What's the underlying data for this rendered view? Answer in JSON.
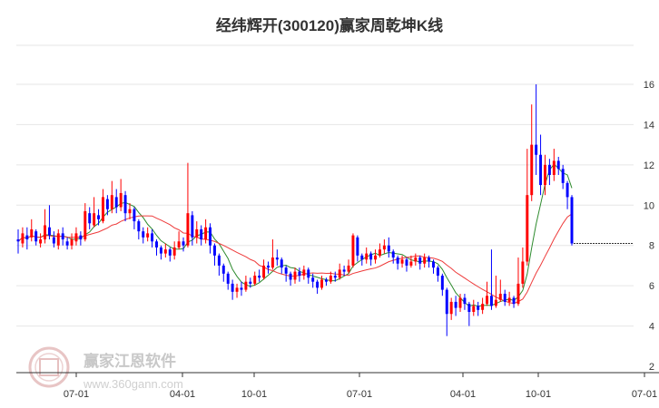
{
  "chart_data": {
    "type": "candlestick",
    "title": "经纬辉开(300120)赢家周乾坤K线",
    "y_ticks": [
      2,
      4,
      6,
      8,
      10,
      12,
      14,
      16
    ],
    "x_ticks": [
      "07-01",
      "04-01",
      "10-01",
      "07-01",
      "04-01",
      "10-01",
      "07-01"
    ],
    "ylim": [
      2,
      17.5
    ],
    "grid": "horizontal",
    "last_close": 8.1,
    "candles": [
      [
        8.3,
        8.2,
        8.8,
        7.6
      ],
      [
        8.1,
        8.6,
        8.9,
        7.9
      ],
      [
        8.5,
        8.3,
        8.9,
        7.8
      ],
      [
        8.4,
        8.8,
        9.3,
        8.2
      ],
      [
        8.7,
        8.2,
        8.8,
        8.0
      ],
      [
        8.1,
        8.3,
        8.6,
        7.9
      ],
      [
        8.3,
        9.0,
        9.8,
        8.1
      ],
      [
        8.9,
        8.5,
        10.0,
        8.3
      ],
      [
        8.4,
        8.1,
        8.7,
        7.9
      ],
      [
        8.0,
        8.6,
        8.8,
        7.8
      ],
      [
        8.6,
        8.3,
        8.9,
        8.0
      ],
      [
        8.2,
        8.0,
        8.4,
        7.8
      ],
      [
        8.0,
        8.3,
        8.6,
        7.8
      ],
      [
        8.2,
        8.6,
        8.9,
        8.0
      ],
      [
        8.5,
        8.3,
        8.7,
        8.0
      ],
      [
        8.3,
        9.7,
        10.1,
        8.2
      ],
      [
        9.6,
        9.1,
        9.9,
        8.8
      ],
      [
        9.0,
        9.6,
        10.4,
        8.9
      ],
      [
        9.5,
        9.3,
        9.8,
        9.0
      ],
      [
        9.2,
        10.4,
        10.8,
        9.1
      ],
      [
        10.3,
        9.8,
        10.5,
        9.5
      ],
      [
        9.8,
        10.5,
        11.2,
        9.6
      ],
      [
        10.4,
        9.9,
        10.8,
        9.6
      ],
      [
        9.9,
        10.6,
        11.3,
        9.7
      ],
      [
        10.5,
        9.6,
        10.7,
        9.2
      ],
      [
        9.6,
        9.8,
        10.1,
        9.3
      ],
      [
        9.8,
        9.2,
        9.9,
        8.8
      ],
      [
        9.2,
        8.7,
        9.3,
        8.3
      ],
      [
        8.7,
        8.4,
        8.9,
        8.1
      ],
      [
        8.4,
        8.6,
        8.9,
        8.2
      ],
      [
        8.6,
        8.2,
        8.8,
        7.9
      ],
      [
        8.2,
        7.9,
        8.3,
        7.5
      ],
      [
        7.9,
        7.6,
        8.0,
        7.3
      ],
      [
        7.6,
        7.8,
        8.1,
        7.4
      ],
      [
        7.8,
        7.5,
        7.9,
        7.2
      ],
      [
        7.5,
        7.9,
        8.2,
        7.3
      ],
      [
        7.9,
        8.2,
        8.7,
        7.8
      ],
      [
        8.2,
        8.0,
        8.4,
        7.7
      ],
      [
        8.0,
        9.6,
        12.1,
        7.9
      ],
      [
        9.5,
        8.4,
        9.7,
        8.0
      ],
      [
        8.4,
        8.8,
        9.2,
        8.1
      ],
      [
        8.8,
        8.3,
        9.0,
        8.0
      ],
      [
        8.3,
        8.9,
        9.3,
        8.1
      ],
      [
        8.9,
        8.0,
        9.1,
        7.6
      ],
      [
        8.0,
        7.5,
        8.1,
        7.0
      ],
      [
        7.5,
        7.0,
        7.6,
        6.5
      ],
      [
        7.0,
        6.6,
        7.1,
        6.2
      ],
      [
        6.6,
        6.1,
        6.7,
        5.8
      ],
      [
        6.1,
        5.7,
        6.3,
        5.3
      ],
      [
        5.7,
        5.9,
        6.1,
        5.4
      ],
      [
        5.9,
        5.8,
        6.2,
        5.5
      ],
      [
        5.8,
        6.2,
        6.5,
        5.7
      ],
      [
        6.2,
        6.1,
        6.4,
        5.9
      ],
      [
        6.1,
        6.5,
        6.7,
        6.0
      ],
      [
        6.5,
        6.4,
        6.8,
        6.2
      ],
      [
        6.4,
        7.0,
        7.3,
        6.3
      ],
      [
        7.0,
        6.9,
        7.2,
        6.6
      ],
      [
        6.9,
        7.4,
        8.3,
        6.8
      ],
      [
        7.4,
        7.3,
        7.8,
        7.0
      ],
      [
        7.3,
        6.9,
        7.4,
        6.6
      ],
      [
        6.9,
        6.6,
        7.0,
        6.2
      ],
      [
        6.6,
        6.3,
        6.7,
        6.0
      ],
      [
        6.3,
        6.7,
        6.9,
        6.1
      ],
      [
        6.7,
        6.5,
        6.9,
        6.2
      ],
      [
        6.5,
        6.8,
        7.0,
        6.3
      ],
      [
        6.8,
        6.4,
        6.9,
        6.1
      ],
      [
        6.4,
        6.2,
        6.6,
        5.9
      ],
      [
        6.2,
        5.9,
        6.3,
        5.6
      ],
      [
        5.9,
        6.3,
        6.5,
        5.8
      ],
      [
        6.3,
        6.2,
        6.4,
        6.0
      ],
      [
        6.2,
        6.5,
        6.7,
        6.1
      ],
      [
        6.5,
        6.4,
        6.7,
        6.2
      ],
      [
        6.4,
        6.8,
        7.1,
        6.3
      ],
      [
        6.8,
        6.7,
        7.0,
        6.5
      ],
      [
        6.7,
        7.0,
        7.3,
        6.6
      ],
      [
        7.0,
        8.5,
        8.6,
        6.9
      ],
      [
        8.4,
        7.5,
        8.5,
        7.2
      ],
      [
        7.5,
        7.3,
        7.6,
        7.0
      ],
      [
        7.3,
        7.6,
        7.9,
        7.1
      ],
      [
        7.6,
        7.3,
        7.7,
        7.0
      ],
      [
        7.3,
        7.5,
        7.8,
        7.1
      ],
      [
        7.5,
        7.8,
        8.1,
        7.4
      ],
      [
        7.8,
        8.0,
        8.3,
        7.6
      ],
      [
        8.0,
        7.7,
        8.4,
        7.4
      ],
      [
        7.7,
        7.4,
        7.8,
        7.1
      ],
      [
        7.4,
        7.1,
        7.5,
        6.8
      ],
      [
        7.1,
        7.3,
        7.5,
        6.9
      ],
      [
        7.3,
        7.0,
        7.4,
        6.7
      ],
      [
        7.0,
        7.2,
        7.5,
        6.9
      ],
      [
        7.2,
        7.4,
        7.6,
        7.0
      ],
      [
        7.4,
        7.1,
        7.5,
        6.8
      ],
      [
        7.1,
        7.4,
        7.6,
        6.9
      ],
      [
        7.4,
        7.2,
        7.5,
        6.9
      ],
      [
        7.2,
        6.9,
        7.3,
        6.6
      ],
      [
        6.9,
        6.5,
        7.0,
        6.2
      ],
      [
        6.5,
        5.8,
        6.6,
        5.5
      ],
      [
        5.8,
        4.6,
        5.9,
        3.5
      ],
      [
        4.6,
        5.2,
        5.4,
        4.3
      ],
      [
        5.2,
        4.9,
        5.5,
        4.5
      ],
      [
        4.9,
        5.4,
        5.6,
        4.7
      ],
      [
        5.4,
        5.1,
        5.6,
        4.8
      ],
      [
        5.1,
        4.7,
        5.2,
        4.0
      ],
      [
        4.7,
        5.0,
        5.3,
        4.5
      ],
      [
        5.0,
        4.8,
        5.2,
        4.5
      ],
      [
        4.8,
        5.1,
        5.4,
        4.6
      ],
      [
        5.1,
        5.5,
        6.2,
        5.0
      ],
      [
        5.5,
        5.0,
        7.8,
        4.8
      ],
      [
        5.0,
        5.3,
        6.5,
        4.9
      ],
      [
        5.3,
        5.6,
        6.3,
        5.2
      ],
      [
        5.6,
        5.2,
        5.8,
        5.0
      ],
      [
        5.2,
        5.4,
        5.7,
        5.0
      ],
      [
        5.4,
        5.1,
        5.5,
        4.9
      ],
      [
        5.1,
        6.1,
        7.4,
        5.0
      ],
      [
        6.1,
        7.2,
        7.9,
        5.9
      ],
      [
        7.2,
        10.5,
        12.8,
        7.0
      ],
      [
        10.5,
        13.0,
        15.0,
        10.2
      ],
      [
        13.0,
        12.5,
        16.0,
        11.5
      ],
      [
        12.5,
        11.0,
        13.5,
        10.5
      ],
      [
        11.0,
        12.0,
        12.5,
        10.5
      ],
      [
        12.0,
        11.5,
        12.3,
        11.0
      ],
      [
        11.5,
        12.2,
        12.8,
        11.2
      ],
      [
        12.2,
        11.8,
        12.4,
        11.5
      ],
      [
        11.8,
        11.1,
        12.0,
        10.8
      ],
      [
        11.1,
        10.4,
        11.2,
        9.8
      ],
      [
        10.4,
        8.1,
        10.5,
        8.0
      ]
    ]
  },
  "watermark": {
    "name": "赢家江恩软件",
    "url": "www.360gann.com",
    "seal": "赢家江恩"
  }
}
